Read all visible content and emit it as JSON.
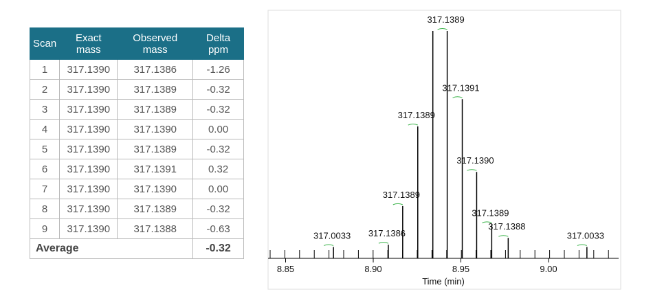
{
  "table": {
    "header": [
      "Scan",
      "Exact mass",
      "Observed mass",
      "Delta ppm"
    ],
    "rows": [
      [
        "1",
        "317.1390",
        "317.1386",
        "-1.26"
      ],
      [
        "2",
        "317.1390",
        "317.1389",
        "-0.32"
      ],
      [
        "3",
        "317.1390",
        "317.1389",
        "-0.32"
      ],
      [
        "4",
        "317.1390",
        "317.1390",
        "0.00"
      ],
      [
        "5",
        "317.1390",
        "317.1389",
        "-0.32"
      ],
      [
        "6",
        "317.1390",
        "317.1391",
        "0.32"
      ],
      [
        "7",
        "317.1390",
        "317.1390",
        "0.00"
      ],
      [
        "8",
        "317.1390",
        "317.1389",
        "-0.32"
      ],
      [
        "9",
        "317.1390",
        "317.1388",
        "-0.63"
      ]
    ],
    "footer": [
      "Average",
      "-0.32"
    ]
  },
  "chart_data": {
    "type": "stick",
    "x_label": "Time (min)",
    "x": [
      8.8773,
      8.9086,
      8.9168,
      8.9254,
      8.934,
      8.9422,
      8.9508,
      8.959,
      8.9676,
      8.977,
      9.0219
    ],
    "values": [
      5,
      6,
      23,
      58,
      100,
      100,
      70,
      38,
      15,
      9,
      5
    ],
    "labels": [
      "317.0033",
      "317.1386",
      "317.1389",
      "317.1389",
      null,
      "317.1389",
      "317.1391",
      "317.1390",
      "317.1389",
      "317.1388",
      "317.0033"
    ],
    "color": "#000000",
    "label_marker_color": "#3cb44b",
    "xlim": [
      8.84,
      9.04
    ],
    "ylim": [
      0,
      100
    ],
    "xticks": [
      8.85,
      {
        "value": 8.9,
        "label": "8.90"
      },
      8.95,
      {
        "value": 9.0,
        "label": "9.00"
      }
    ]
  }
}
